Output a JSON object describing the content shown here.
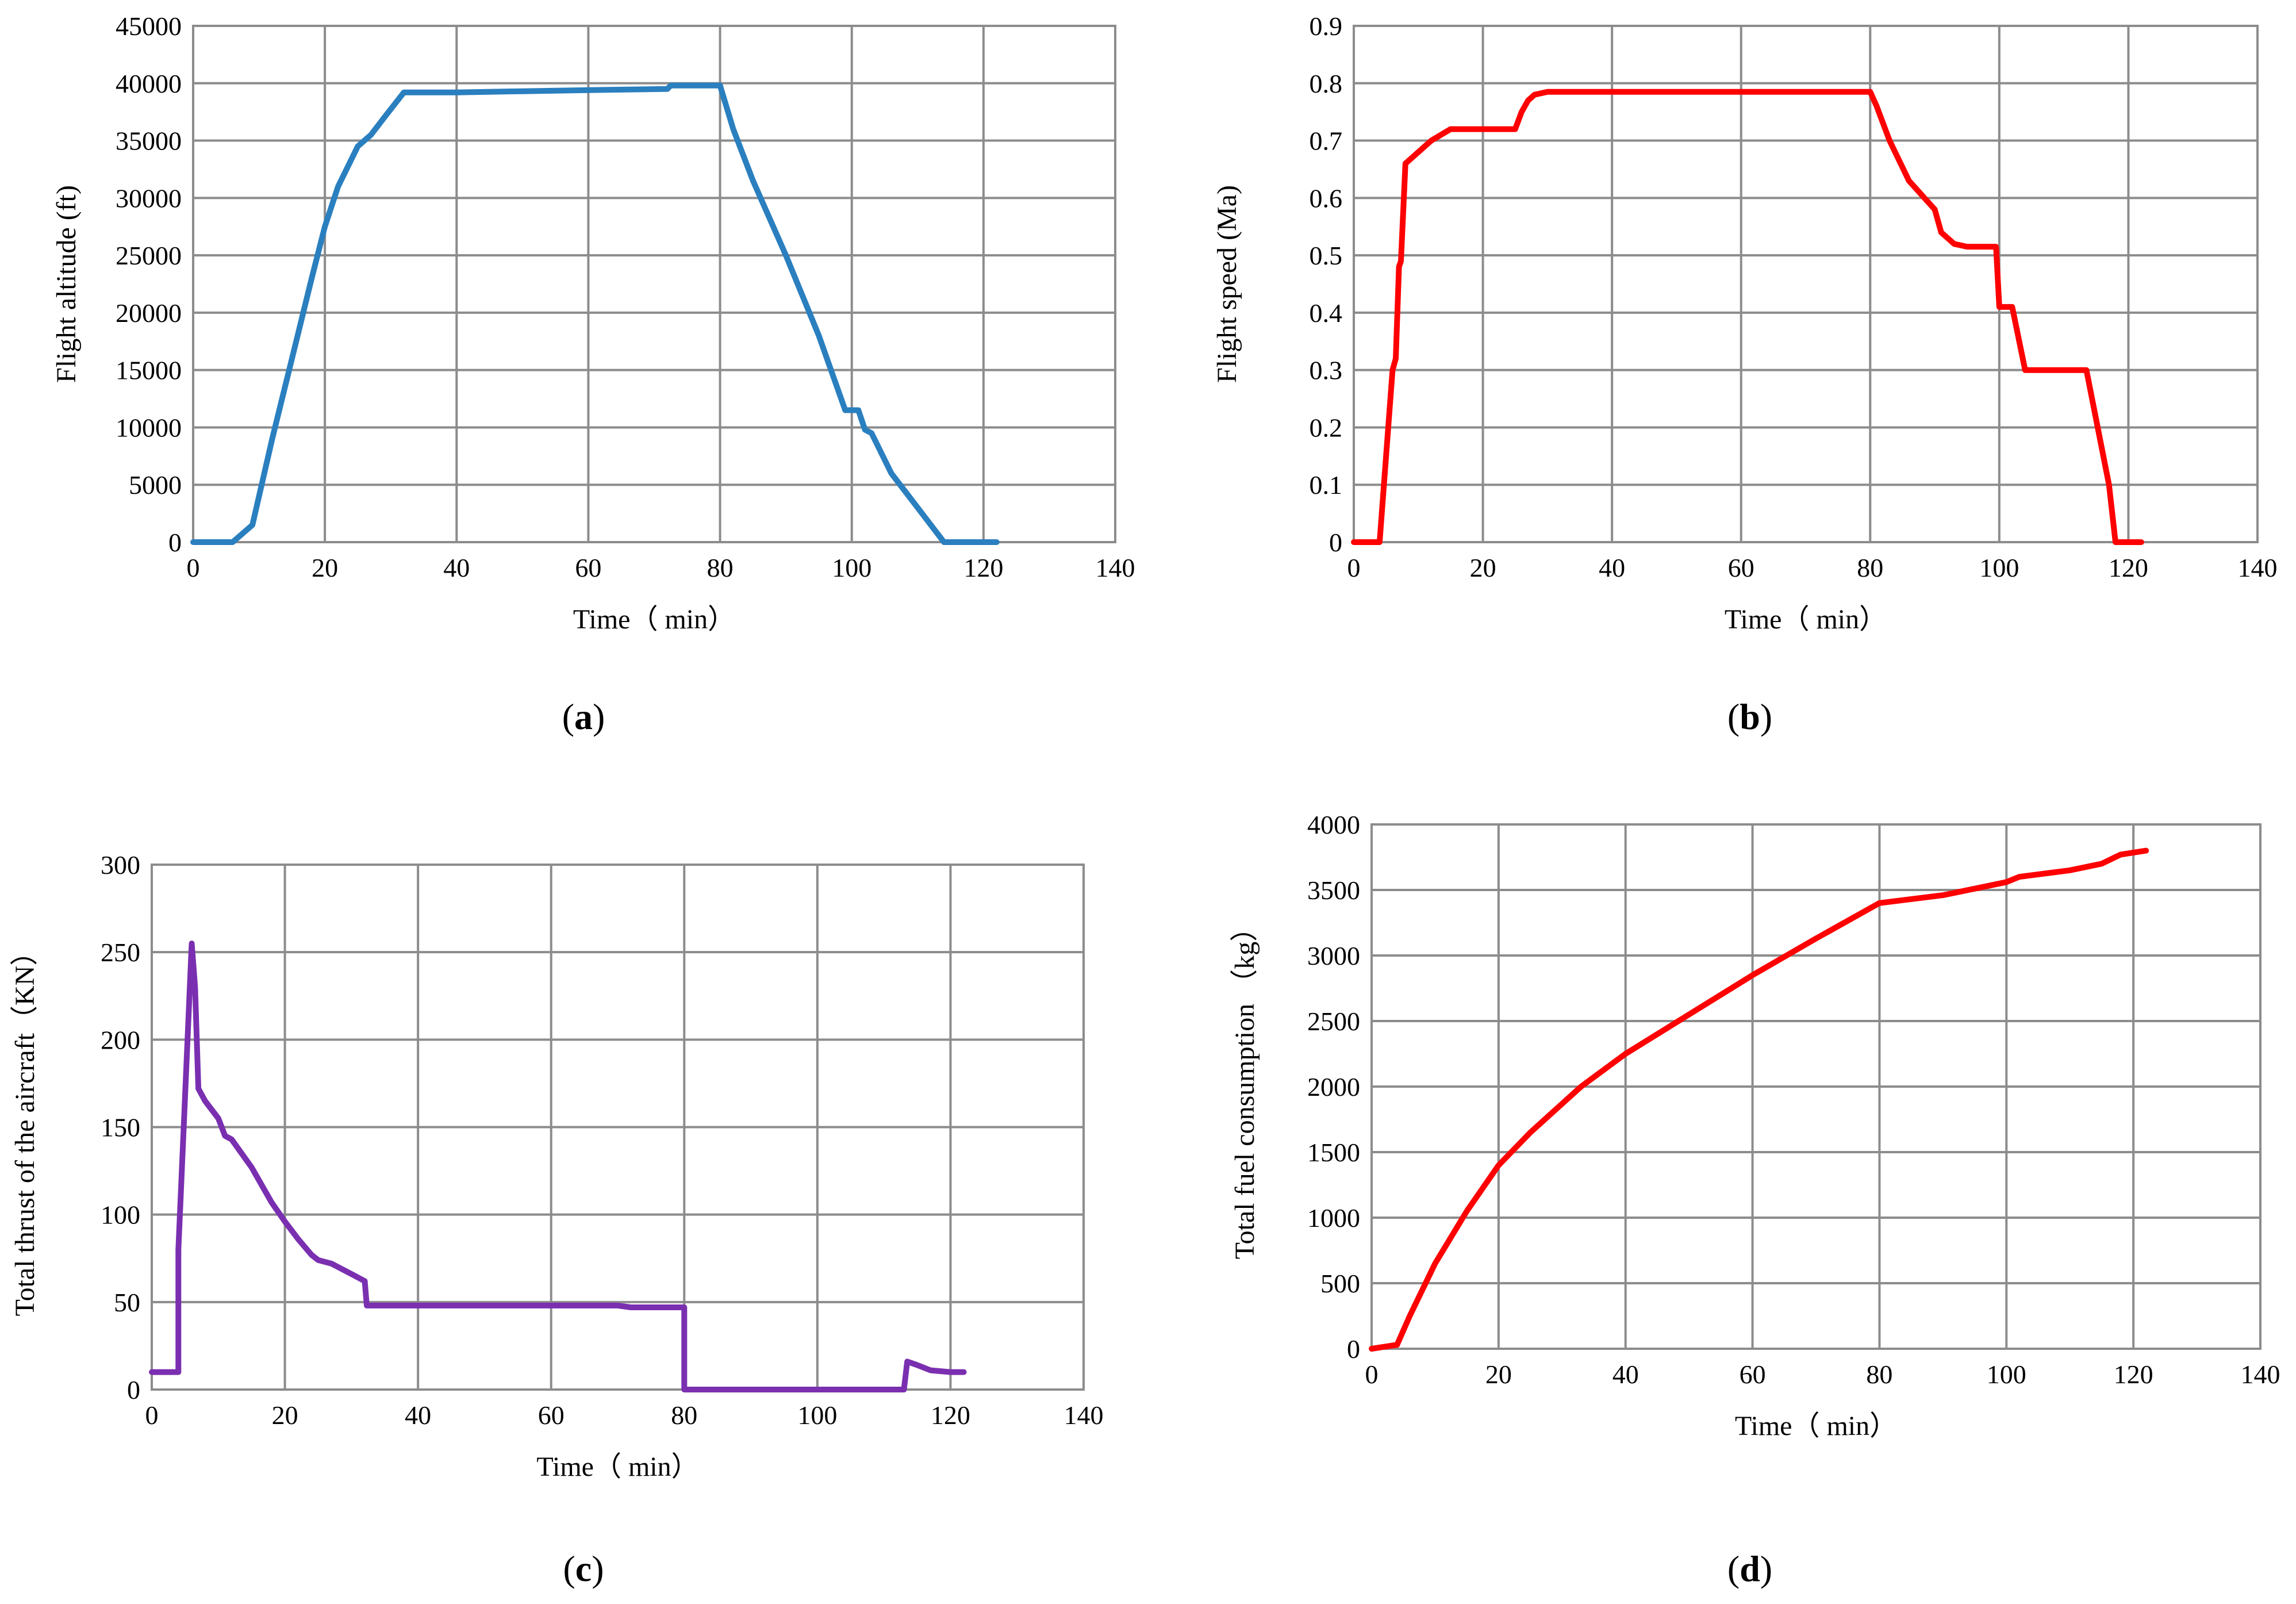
{
  "chart_data": [
    {
      "id": "a",
      "type": "line",
      "panel_label": "a",
      "xlabel": "Time（ min）",
      "ylabel": "Flight altitude (ft)",
      "xlim": [
        0,
        140
      ],
      "ylim": [
        0,
        45000
      ],
      "xticks": [
        0,
        20,
        40,
        60,
        80,
        100,
        120,
        140
      ],
      "yticks": [
        0,
        5000,
        10000,
        15000,
        20000,
        25000,
        30000,
        35000,
        40000,
        45000
      ],
      "grid": true,
      "color": "#2a7fbf",
      "series": [
        {
          "name": "Flight altitude",
          "x": [
            0,
            6,
            9,
            12,
            15,
            18,
            20,
            22,
            25,
            27,
            29,
            32,
            40,
            50,
            60,
            72,
            72.5,
            80,
            82,
            85,
            90,
            95,
            99,
            100,
            101,
            102,
            103,
            106,
            110,
            114,
            122
          ],
          "y": [
            0,
            0,
            1500,
            9000,
            16000,
            23000,
            27500,
            31000,
            34500,
            35500,
            37000,
            39200,
            39200,
            39300,
            39400,
            39500,
            39800,
            39800,
            36000,
            31500,
            25000,
            18000,
            11500,
            11500,
            11500,
            9800,
            9500,
            6000,
            3000,
            0,
            0
          ]
        }
      ]
    },
    {
      "id": "b",
      "type": "line",
      "panel_label": "b",
      "xlabel": "Time（ min）",
      "ylabel": "Flight speed (Ma)",
      "xlim": [
        0,
        140
      ],
      "ylim": [
        0,
        0.9
      ],
      "xticks": [
        0,
        20,
        40,
        60,
        80,
        100,
        120,
        140
      ],
      "yticks": [
        0,
        0.1,
        0.2,
        0.3,
        0.4,
        0.5,
        0.6,
        0.7,
        0.8,
        0.9
      ],
      "grid": true,
      "color": "#ff0000",
      "series": [
        {
          "name": "Flight speed",
          "x": [
            0,
            4,
            6,
            6.5,
            7,
            7.3,
            8,
            10,
            11,
            12,
            15,
            20,
            25,
            26,
            27,
            28,
            30,
            35,
            50,
            80,
            81,
            83,
            86,
            90,
            91,
            93,
            95,
            99.5,
            100,
            101,
            101.5,
            102,
            104,
            110,
            113.5,
            117,
            118,
            122
          ],
          "y": [
            0,
            0,
            0.3,
            0.32,
            0.48,
            0.49,
            0.66,
            0.68,
            0.69,
            0.7,
            0.72,
            0.72,
            0.72,
            0.75,
            0.77,
            0.78,
            0.785,
            0.785,
            0.785,
            0.785,
            0.76,
            0.7,
            0.63,
            0.58,
            0.54,
            0.52,
            0.515,
            0.515,
            0.41,
            0.41,
            0.41,
            0.41,
            0.3,
            0.3,
            0.3,
            0.1,
            0,
            0
          ]
        }
      ]
    },
    {
      "id": "c",
      "type": "line",
      "panel_label": "c",
      "xlabel": "Time（ min）",
      "ylabel": "Total thrust of the aircraft（KN）",
      "xlim": [
        0,
        140
      ],
      "ylim": [
        0,
        300
      ],
      "xticks": [
        0,
        20,
        40,
        60,
        80,
        100,
        120,
        140
      ],
      "yticks": [
        0,
        50,
        100,
        150,
        200,
        250,
        300
      ],
      "grid": true,
      "color": "#7a2fb0",
      "series": [
        {
          "name": "Total thrust",
          "x": [
            0,
            4,
            4,
            6,
            6.5,
            7,
            8,
            10,
            11,
            12,
            15,
            18,
            20,
            22,
            24,
            25,
            27,
            30,
            32,
            32.3,
            40,
            60,
            70,
            72,
            80,
            80,
            100,
            113,
            113.5,
            115,
            117,
            120,
            122
          ],
          "y": [
            10,
            10,
            80,
            255,
            230,
            172,
            165,
            155,
            145,
            143,
            127,
            107,
            96,
            86,
            77,
            74,
            72,
            66,
            62,
            48,
            48,
            48,
            48,
            47,
            47,
            0,
            0,
            0,
            16,
            14,
            11,
            10,
            10
          ]
        }
      ]
    },
    {
      "id": "d",
      "type": "line",
      "panel_label": "d",
      "xlabel": "Time（ min）",
      "ylabel": "Total fuel consumption （kg）",
      "xlim": [
        0,
        140
      ],
      "ylim": [
        0,
        4000
      ],
      "xticks": [
        0,
        20,
        40,
        60,
        80,
        100,
        120,
        140
      ],
      "yticks": [
        0,
        500,
        1000,
        1500,
        2000,
        2500,
        3000,
        3500,
        4000
      ],
      "grid": true,
      "color": "#ff0000",
      "series": [
        {
          "name": "Total fuel consumption",
          "x": [
            0,
            4,
            6,
            10,
            15,
            20,
            25,
            33,
            40,
            50,
            60,
            70,
            80,
            90,
            100,
            102,
            110,
            115,
            118,
            122
          ],
          "y": [
            0,
            30,
            250,
            650,
            1050,
            1400,
            1650,
            2000,
            2250,
            2550,
            2850,
            3130,
            3400,
            3460,
            3560,
            3600,
            3650,
            3700,
            3770,
            3800
          ]
        }
      ]
    }
  ]
}
